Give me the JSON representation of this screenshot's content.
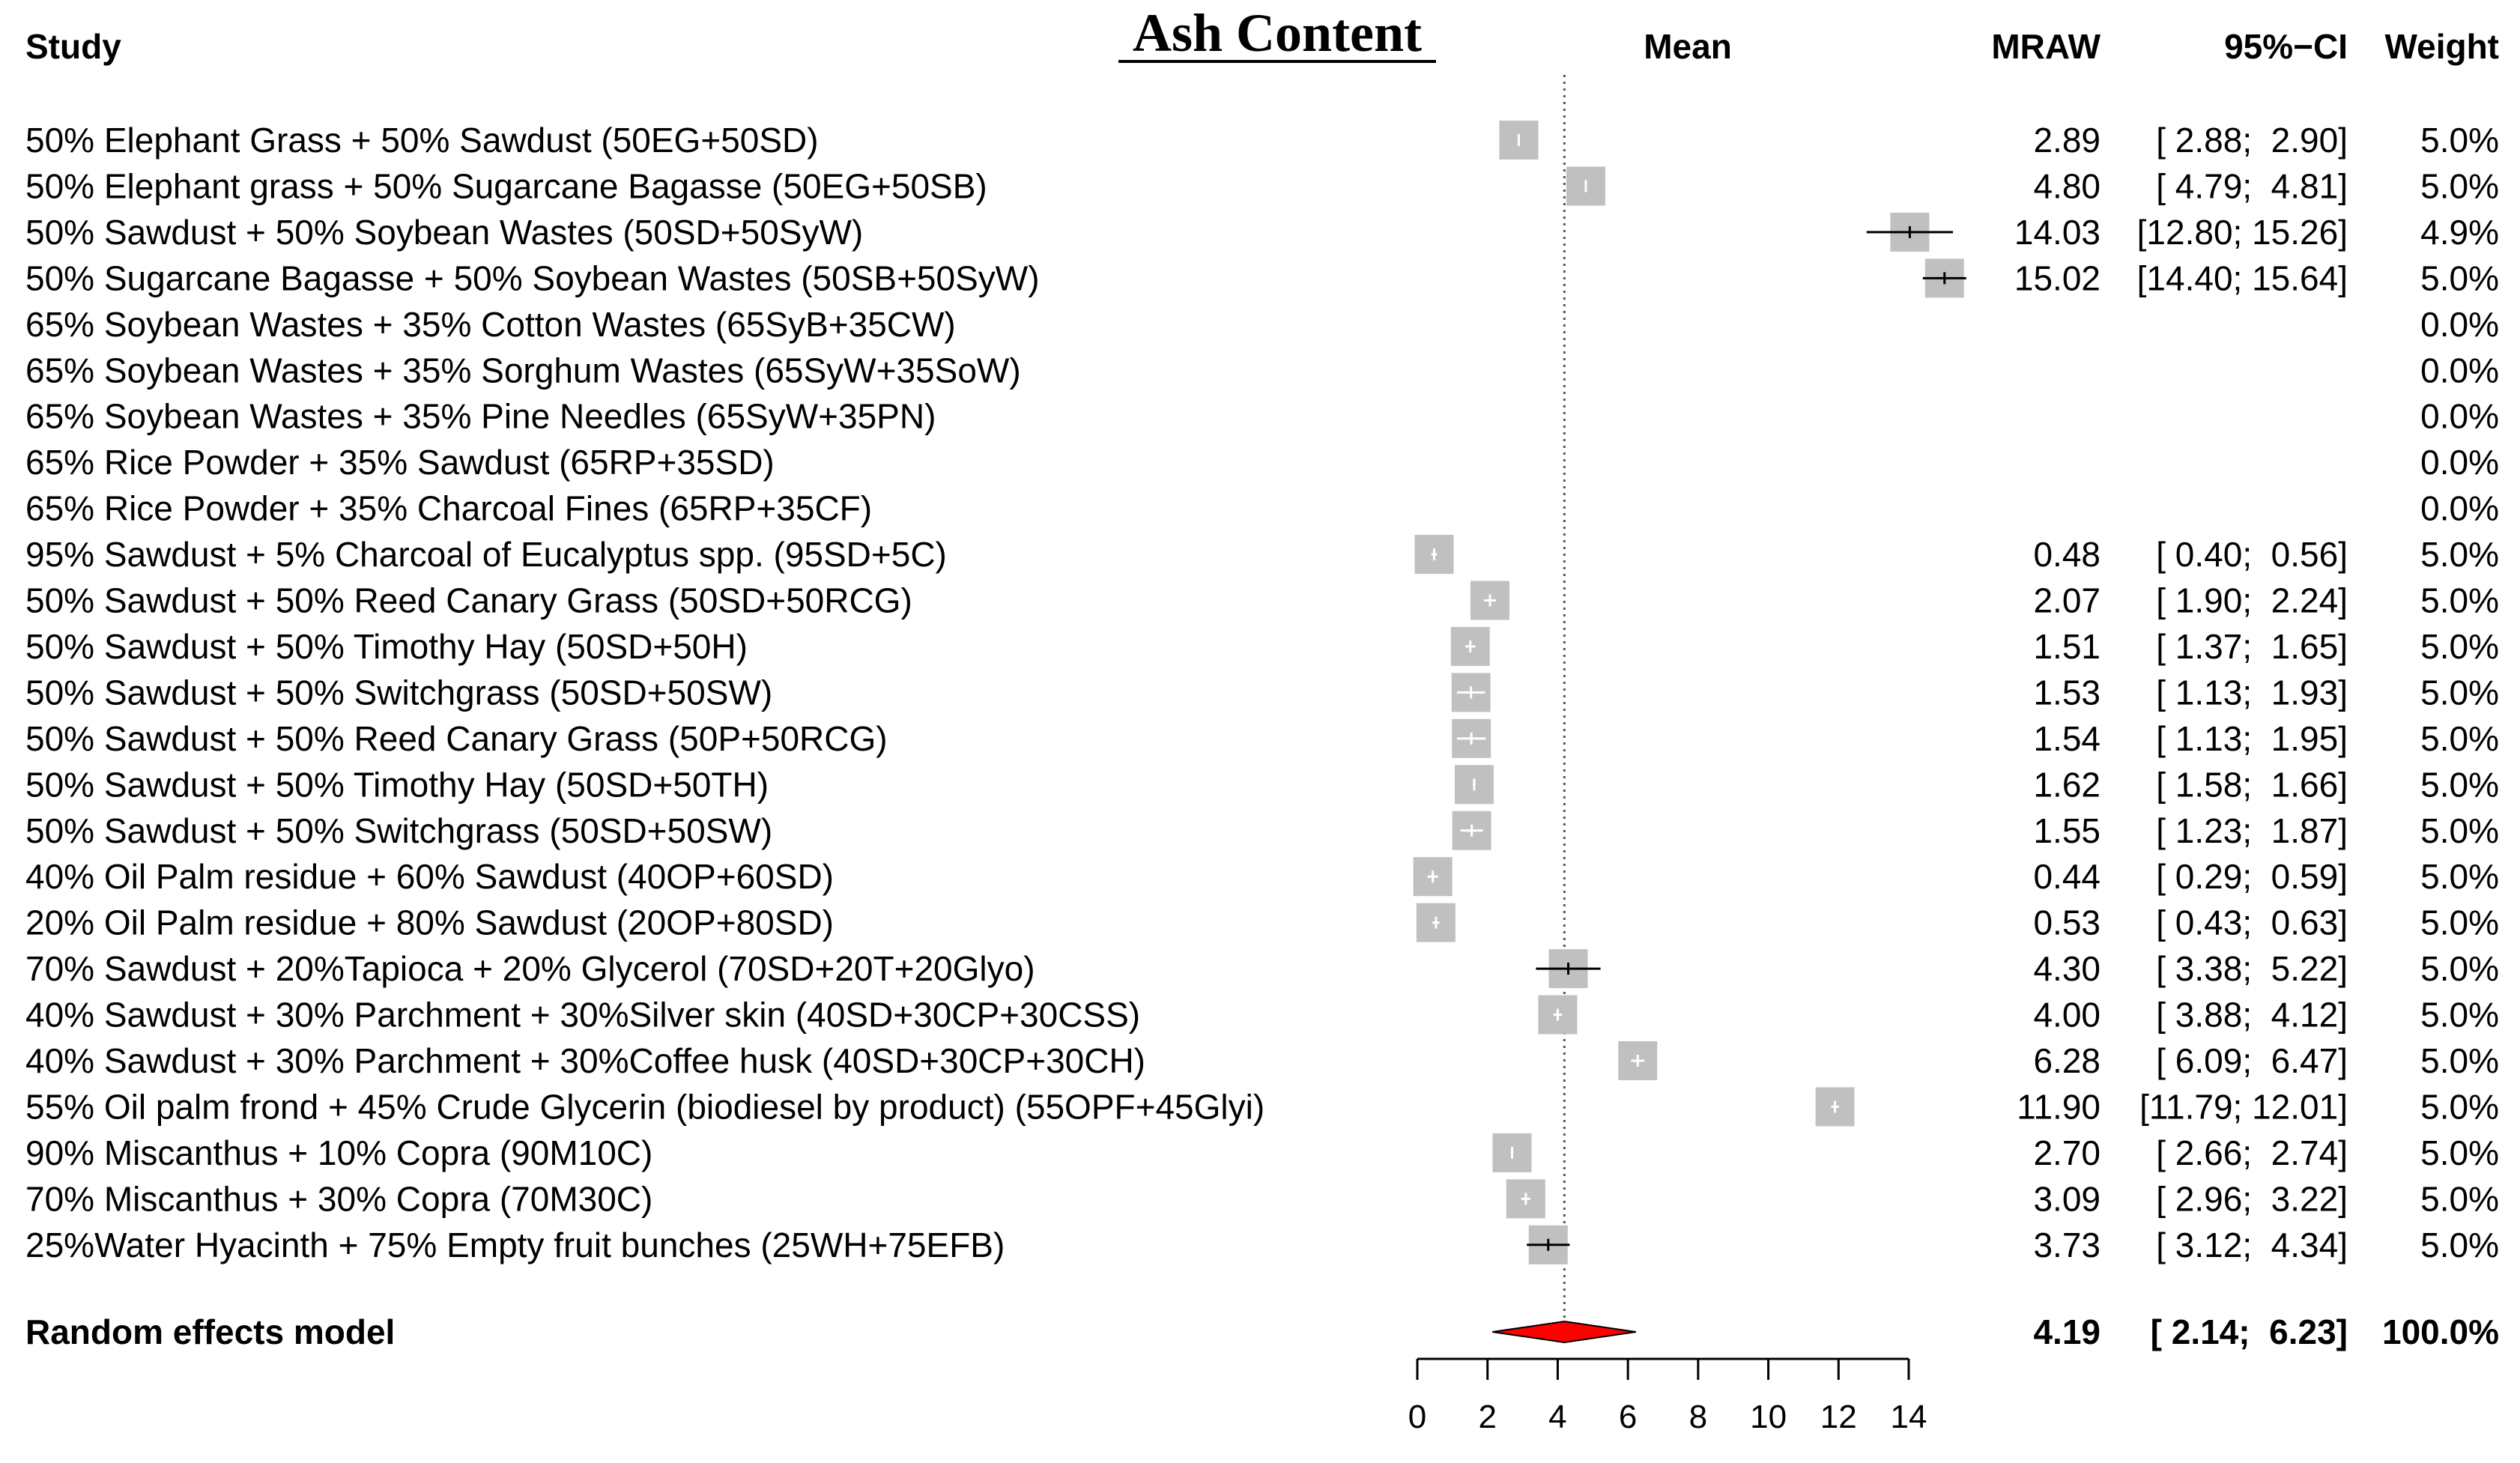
{
  "chart_data": {
    "type": "forest",
    "title": "Ash Content",
    "headers": {
      "study": "Study",
      "mean": "Mean",
      "mraw": "MRAW",
      "ci": "95%−CI",
      "weight": "Weight"
    },
    "xlim": [
      0,
      14
    ],
    "xticks": [
      0,
      2,
      4,
      6,
      8,
      10,
      12,
      14
    ],
    "reference_line": 4.19,
    "colors": {
      "box": "#c0c0c0",
      "diamond": "#ff0000",
      "line": "#000000"
    },
    "studies": [
      {
        "label": "50% Elephant Grass + 50% Sawdust (50EG+50SD)",
        "mean": 2.89,
        "lower": 2.88,
        "upper": 2.9,
        "mraw": "2.89",
        "ci": "[ 2.88;  2.90]",
        "weight": "5.0%"
      },
      {
        "label": "50% Elephant grass + 50% Sugarcane Bagasse (50EG+50SB)",
        "mean": 4.8,
        "lower": 4.79,
        "upper": 4.81,
        "mraw": "4.80",
        "ci": "[ 4.79;  4.81]",
        "weight": "5.0%"
      },
      {
        "label": "50% Sawdust + 50% Soybean Wastes (50SD+50SyW)",
        "mean": 14.03,
        "lower": 12.8,
        "upper": 15.26,
        "mraw": "14.03",
        "ci": "[12.80; 15.26]",
        "weight": "4.9%"
      },
      {
        "label": "50% Sugarcane Bagasse + 50% Soybean Wastes (50SB+50SyW)",
        "mean": 15.02,
        "lower": 14.4,
        "upper": 15.64,
        "mraw": "15.02",
        "ci": "[14.40; 15.64]",
        "weight": "5.0%"
      },
      {
        "label": "65% Soybean Wastes + 35% Cotton Wastes (65SyB+35CW)",
        "mean": null,
        "lower": null,
        "upper": null,
        "mraw": "",
        "ci": "",
        "weight": "0.0%"
      },
      {
        "label": "65% Soybean Wastes + 35% Sorghum Wastes (65SyW+35SoW)",
        "mean": null,
        "lower": null,
        "upper": null,
        "mraw": "",
        "ci": "",
        "weight": "0.0%"
      },
      {
        "label": "65% Soybean Wastes + 35% Pine Needles (65SyW+35PN)",
        "mean": null,
        "lower": null,
        "upper": null,
        "mraw": "",
        "ci": "",
        "weight": "0.0%"
      },
      {
        "label": "65% Rice Powder + 35% Sawdust (65RP+35SD)",
        "mean": null,
        "lower": null,
        "upper": null,
        "mraw": "",
        "ci": "",
        "weight": "0.0%"
      },
      {
        "label": "65% Rice Powder + 35% Charcoal Fines (65RP+35CF)",
        "mean": null,
        "lower": null,
        "upper": null,
        "mraw": "",
        "ci": "",
        "weight": "0.0%"
      },
      {
        "label": "95% Sawdust + 5% Charcoal of Eucalyptus spp. (95SD+5C)",
        "mean": 0.48,
        "lower": 0.4,
        "upper": 0.56,
        "mraw": "0.48",
        "ci": "[ 0.40;  0.56]",
        "weight": "5.0%"
      },
      {
        "label": "50% Sawdust + 50% Reed Canary Grass  (50SD+50RCG)",
        "mean": 2.07,
        "lower": 1.9,
        "upper": 2.24,
        "mraw": "2.07",
        "ci": "[ 1.90;  2.24]",
        "weight": "5.0%"
      },
      {
        "label": "50% Sawdust + 50% Timothy Hay (50SD+50H)",
        "mean": 1.51,
        "lower": 1.37,
        "upper": 1.65,
        "mraw": "1.51",
        "ci": "[ 1.37;  1.65]",
        "weight": "5.0%"
      },
      {
        "label": "50% Sawdust + 50% Switchgrass (50SD+50SW)",
        "mean": 1.53,
        "lower": 1.13,
        "upper": 1.93,
        "mraw": "1.53",
        "ci": "[ 1.13;  1.93]",
        "weight": "5.0%"
      },
      {
        "label": "50% Sawdust + 50% Reed Canary Grass  (50P+50RCG)",
        "mean": 1.54,
        "lower": 1.13,
        "upper": 1.95,
        "mraw": "1.54",
        "ci": "[ 1.13;  1.95]",
        "weight": "5.0%"
      },
      {
        "label": "50% Sawdust + 50% Timothy Hay (50SD+50TH)",
        "mean": 1.62,
        "lower": 1.58,
        "upper": 1.66,
        "mraw": "1.62",
        "ci": "[ 1.58;  1.66]",
        "weight": "5.0%"
      },
      {
        "label": "50% Sawdust + 50% Switchgrass (50SD+50SW)",
        "mean": 1.55,
        "lower": 1.23,
        "upper": 1.87,
        "mraw": "1.55",
        "ci": "[ 1.23;  1.87]",
        "weight": "5.0%"
      },
      {
        "label": "40% Oil Palm residue + 60% Sawdust (40OP+60SD)",
        "mean": 0.44,
        "lower": 0.29,
        "upper": 0.59,
        "mraw": "0.44",
        "ci": "[ 0.29;  0.59]",
        "weight": "5.0%"
      },
      {
        "label": "20% Oil Palm residue + 80% Sawdust (20OP+80SD)",
        "mean": 0.53,
        "lower": 0.43,
        "upper": 0.63,
        "mraw": "0.53",
        "ci": "[ 0.43;  0.63]",
        "weight": "5.0%"
      },
      {
        "label": "70% Sawdust + 20%Tapioca + 20% Glycerol (70SD+20T+20Glyo)",
        "mean": 4.3,
        "lower": 3.38,
        "upper": 5.22,
        "mraw": "4.30",
        "ci": "[ 3.38;  5.22]",
        "weight": "5.0%"
      },
      {
        "label": "40% Sawdust + 30% Parchment + 30%Silver skin (40SD+30CP+30CSS)",
        "mean": 4.0,
        "lower": 3.88,
        "upper": 4.12,
        "mraw": "4.00",
        "ci": "[ 3.88;  4.12]",
        "weight": "5.0%"
      },
      {
        "label": "40% Sawdust + 30% Parchment + 30%Coffee husk (40SD+30CP+30CH)",
        "mean": 6.28,
        "lower": 6.09,
        "upper": 6.47,
        "mraw": "6.28",
        "ci": "[ 6.09;  6.47]",
        "weight": "5.0%"
      },
      {
        "label": "55% Oil palm frond + 45% Crude Glycerin (biodiesel by product) (55OPF+45Glyi)",
        "mean": 11.9,
        "lower": 11.79,
        "upper": 12.01,
        "mraw": "11.90",
        "ci": "[11.79; 12.01]",
        "weight": "5.0%"
      },
      {
        "label": "90% Miscanthus + 10% Copra (90M10C)",
        "mean": 2.7,
        "lower": 2.66,
        "upper": 2.74,
        "mraw": "2.70",
        "ci": "[ 2.66;  2.74]",
        "weight": "5.0%"
      },
      {
        "label": "70% Miscanthus + 30% Copra (70M30C)",
        "mean": 3.09,
        "lower": 2.96,
        "upper": 3.22,
        "mraw": "3.09",
        "ci": "[ 2.96;  3.22]",
        "weight": "5.0%"
      },
      {
        "label": "25%Water Hyacinth + 75% Empty fruit bunches (25WH+75EFB)",
        "mean": 3.73,
        "lower": 3.12,
        "upper": 4.34,
        "mraw": "3.73",
        "ci": "[ 3.12;  4.34]",
        "weight": "5.0%"
      }
    ],
    "summary": {
      "label": "Random effects model",
      "mean": 4.19,
      "lower": 2.14,
      "upper": 6.23,
      "mraw": "4.19",
      "ci": "[ 2.14;  6.23]",
      "weight": "100.0%"
    }
  }
}
